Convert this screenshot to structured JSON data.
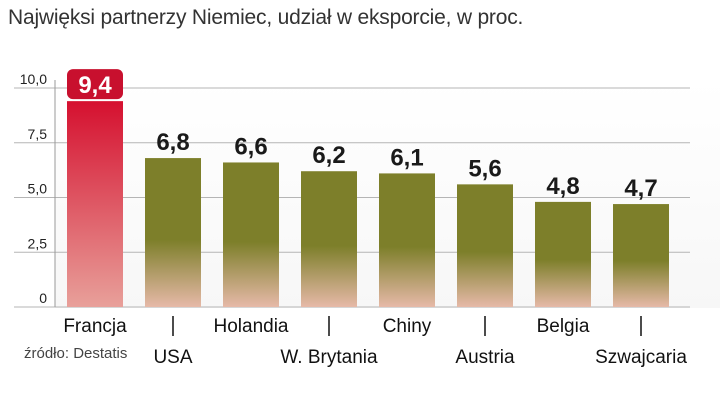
{
  "chart_data": {
    "type": "bar",
    "title": "Najwięksi partnerzy Niemiec,  udział w eksporcie,  w proc.",
    "categories": [
      "Francja",
      "USA",
      "Holandia",
      "W. Brytania",
      "Chiny",
      "Austria",
      "Belgia",
      "Szwajcaria"
    ],
    "values": [
      9.4,
      6.8,
      6.6,
      6.2,
      6.1,
      5.6,
      4.8,
      4.7
    ],
    "value_labels": [
      "9,4",
      "6,8",
      "6,6",
      "6,2",
      "6,1",
      "5,6",
      "4,8",
      "4,7"
    ],
    "yticks": [
      "0",
      "2,5",
      "5,0",
      "7,5",
      "10,0"
    ],
    "ytick_values": [
      0,
      2.5,
      5,
      7.5,
      10
    ],
    "ylim": [
      0,
      10
    ],
    "xlabel": "",
    "ylabel": "",
    "highlight_index": 0,
    "colors": {
      "highlight": "#c8102e",
      "bar_top": "#7d7f2a",
      "bar_bottom": "#e6b9a8",
      "highlight_top": "#d5102f",
      "highlight_bottom": "#e8a09a",
      "grid": "#b5b5b5",
      "plot_bg": "#f7f7f7"
    }
  },
  "source": "źródło: Destatis"
}
